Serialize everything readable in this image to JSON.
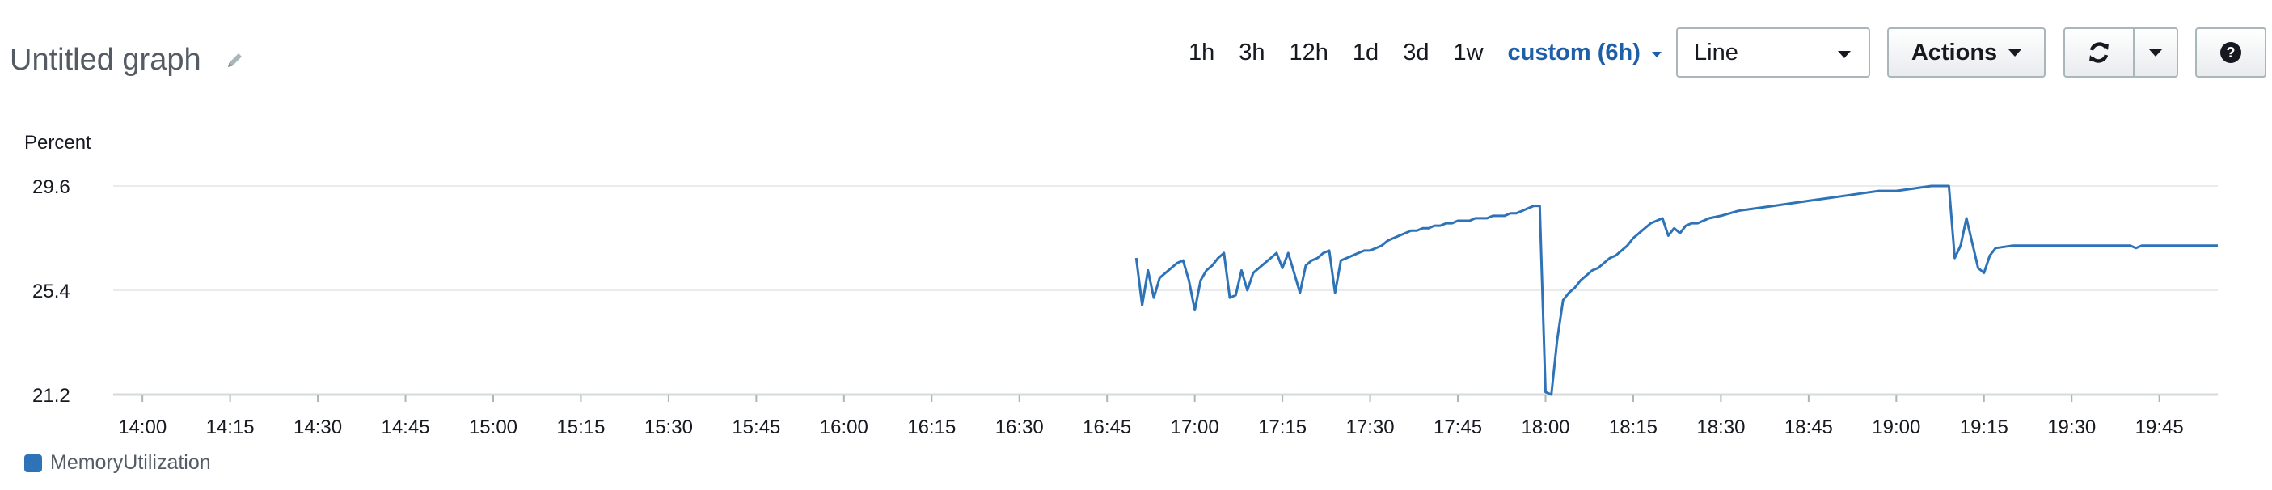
{
  "graph": {
    "title": "Untitled graph"
  },
  "toolbar": {
    "ranges": [
      "1h",
      "3h",
      "12h",
      "1d",
      "3d",
      "1w"
    ],
    "active_range": "custom (6h)",
    "chart_type_value": "Line",
    "actions_label": "Actions"
  },
  "icons": {
    "edit": "pencil-icon",
    "refresh": "refresh-icon",
    "help": "question-circle-icon"
  },
  "colors": {
    "series": "#2e73b8",
    "accent": "#1f5fa8",
    "grid": "#e9ebed"
  },
  "chart_data": {
    "type": "line",
    "ylabel": "Percent",
    "yticks": [
      "21.2",
      "25.4",
      "29.6"
    ],
    "ylim": [
      21.2,
      29.6
    ],
    "xlim": [
      "13:55",
      "19:55"
    ],
    "xticks": [
      "14:00",
      "14:15",
      "14:30",
      "14:45",
      "15:00",
      "15:15",
      "15:30",
      "15:45",
      "16:00",
      "16:15",
      "16:30",
      "16:45",
      "17:00",
      "17:15",
      "17:30",
      "17:45",
      "18:00",
      "18:15",
      "18:30",
      "18:45",
      "19:00",
      "19:15",
      "19:30",
      "19:45"
    ],
    "grid": true,
    "legend": "bottom-left",
    "series": [
      {
        "name": "MemoryUtilization",
        "x": [
          "16:50",
          "16:51",
          "16:52",
          "16:53",
          "16:54",
          "16:55",
          "16:56",
          "16:57",
          "16:58",
          "16:59",
          "17:00",
          "17:01",
          "17:02",
          "17:03",
          "17:04",
          "17:05",
          "17:06",
          "17:07",
          "17:08",
          "17:09",
          "17:10",
          "17:11",
          "17:12",
          "17:13",
          "17:14",
          "17:15",
          "17:16",
          "17:17",
          "17:18",
          "17:19",
          "17:20",
          "17:21",
          "17:22",
          "17:23",
          "17:24",
          "17:25",
          "17:26",
          "17:27",
          "17:28",
          "17:29",
          "17:30",
          "17:31",
          "17:32",
          "17:33",
          "17:34",
          "17:35",
          "17:36",
          "17:37",
          "17:38",
          "17:39",
          "17:40",
          "17:41",
          "17:42",
          "17:43",
          "17:44",
          "17:45",
          "17:46",
          "17:47",
          "17:48",
          "17:49",
          "17:50",
          "17:51",
          "17:52",
          "17:53",
          "17:54",
          "17:55",
          "17:56",
          "17:57",
          "17:58",
          "17:59",
          "18:00",
          "18:01",
          "18:02",
          "18:03",
          "18:04",
          "18:05",
          "18:06",
          "18:07",
          "18:08",
          "18:09",
          "18:10",
          "18:11",
          "18:12",
          "18:13",
          "18:14",
          "18:15",
          "18:16",
          "18:17",
          "18:18",
          "18:19",
          "18:20",
          "18:21",
          "18:22",
          "18:23",
          "18:24",
          "18:25",
          "18:26",
          "18:27",
          "18:28",
          "18:30",
          "18:33",
          "18:36",
          "18:39",
          "18:42",
          "18:45",
          "18:48",
          "18:51",
          "18:54",
          "18:57",
          "19:00",
          "19:03",
          "19:06",
          "19:08",
          "19:09",
          "19:10",
          "19:11",
          "19:12",
          "19:13",
          "19:14",
          "19:15",
          "19:16",
          "19:17",
          "19:20",
          "19:25",
          "19:30",
          "19:35",
          "19:40",
          "19:41",
          "19:42",
          "19:45",
          "19:50",
          "19:55"
        ],
        "y": [
          26.7,
          24.8,
          26.2,
          25.1,
          25.9,
          26.1,
          26.3,
          26.5,
          26.6,
          25.8,
          24.6,
          25.8,
          26.2,
          26.4,
          26.7,
          26.9,
          25.1,
          25.2,
          26.2,
          25.4,
          26.1,
          26.3,
          26.5,
          26.7,
          26.9,
          26.3,
          26.9,
          26.1,
          25.3,
          26.4,
          26.6,
          26.7,
          26.9,
          27.0,
          25.3,
          26.6,
          26.7,
          26.8,
          26.9,
          27.0,
          27.0,
          27.1,
          27.2,
          27.4,
          27.5,
          27.6,
          27.7,
          27.8,
          27.8,
          27.9,
          27.9,
          28.0,
          28.0,
          28.1,
          28.1,
          28.2,
          28.2,
          28.2,
          28.3,
          28.3,
          28.3,
          28.4,
          28.4,
          28.4,
          28.5,
          28.5,
          28.6,
          28.7,
          28.8,
          28.8,
          21.3,
          21.2,
          23.4,
          25.0,
          25.3,
          25.5,
          25.8,
          26.0,
          26.2,
          26.3,
          26.5,
          26.7,
          26.8,
          27.0,
          27.2,
          27.5,
          27.7,
          27.9,
          28.1,
          28.2,
          28.3,
          27.6,
          27.9,
          27.7,
          28.0,
          28.1,
          28.1,
          28.2,
          28.3,
          28.4,
          28.6,
          28.7,
          28.8,
          28.9,
          29.0,
          29.1,
          29.2,
          29.3,
          29.4,
          29.4,
          29.5,
          29.6,
          29.6,
          29.6,
          26.7,
          27.2,
          28.3,
          27.3,
          26.3,
          26.1,
          26.8,
          27.1,
          27.2,
          27.2,
          27.2,
          27.2,
          27.2,
          27.1,
          27.2,
          27.2,
          27.2,
          27.2
        ]
      }
    ]
  }
}
